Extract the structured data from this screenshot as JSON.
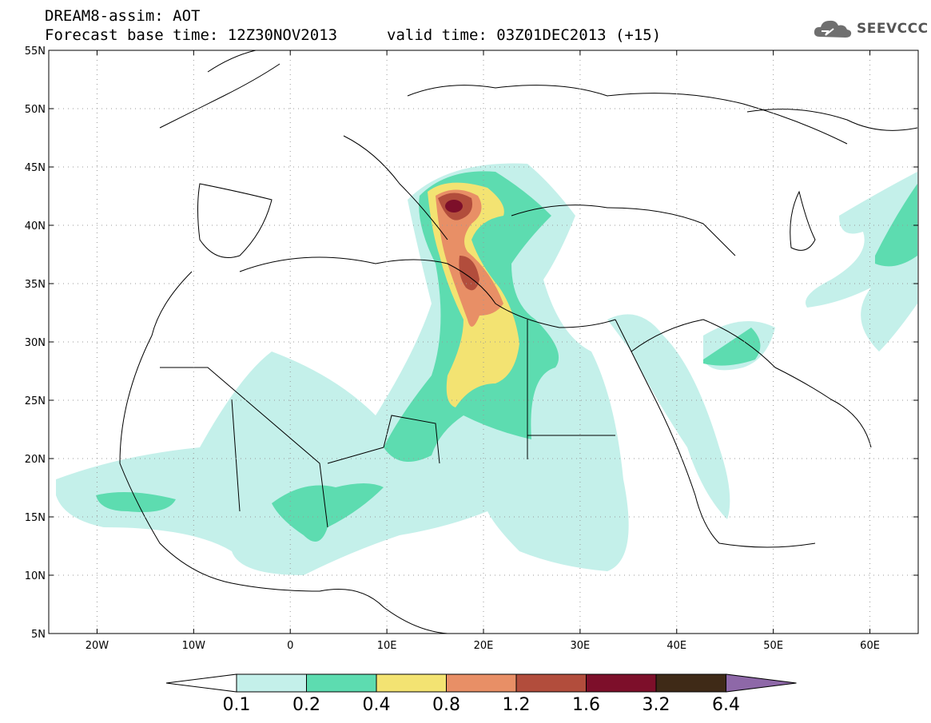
{
  "title": {
    "line1": "DREAM8-assim: AOT",
    "line2": "Forecast base time: 12Z30NOV2013",
    "valid": "valid time: 03Z01DEC2013 (+15)"
  },
  "logo": {
    "text": "SEEVCCC",
    "icon": "cloud-logo-icon"
  },
  "map": {
    "lon_range": [
      -25,
      65
    ],
    "lat_range": [
      5,
      55
    ],
    "lat_ticks": [
      {
        "value": 55,
        "label": "55N"
      },
      {
        "value": 50,
        "label": "50N"
      },
      {
        "value": 45,
        "label": "45N"
      },
      {
        "value": 40,
        "label": "40N"
      },
      {
        "value": 35,
        "label": "35N"
      },
      {
        "value": 30,
        "label": "30N"
      },
      {
        "value": 25,
        "label": "25N"
      },
      {
        "value": 20,
        "label": "20N"
      },
      {
        "value": 15,
        "label": "15N"
      },
      {
        "value": 10,
        "label": "10N"
      },
      {
        "value": 5,
        "label": "5N"
      }
    ],
    "lon_ticks": [
      {
        "value": -20,
        "label": "20W"
      },
      {
        "value": -10,
        "label": "10W"
      },
      {
        "value": 0,
        "label": "0"
      },
      {
        "value": 10,
        "label": "10E"
      },
      {
        "value": 20,
        "label": "20E"
      },
      {
        "value": 30,
        "label": "30E"
      },
      {
        "value": 40,
        "label": "40E"
      },
      {
        "value": 50,
        "label": "50E"
      },
      {
        "value": 60,
        "label": "60E"
      }
    ],
    "grid": "dotted"
  },
  "colorbar": {
    "colors": [
      "#c4f0ea",
      "#5ddcb0",
      "#f3e372",
      "#e88f66",
      "#b24d3c",
      "#7d0f2a",
      "#3f2a17"
    ],
    "over_color": "#8e68a8",
    "under_color": "#ffffff",
    "labels": [
      "0.1",
      "0.2",
      "0.4",
      "0.8",
      "1.2",
      "1.6",
      "3.2",
      "6.4"
    ]
  }
}
